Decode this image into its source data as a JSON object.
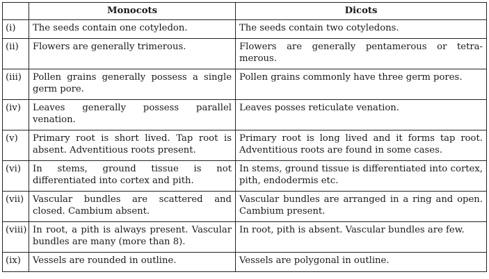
{
  "table": {
    "headers": [
      "",
      "Monocots",
      "Dicots"
    ],
    "rows": [
      {
        "num": "(i)",
        "monocots": "The seeds contain one cotyledon.",
        "dicots": "The seeds contain two cotyledons."
      },
      {
        "num": "(ii)",
        "monocots": "Flowers are generally trimerous.",
        "dicots": "Flowers are generally pentamerous or tetra-merous."
      },
      {
        "num": "(iii)",
        "monocots": "Pollen grains generally possess a single germ pore.",
        "dicots": "Pollen grains commonly have three germ pores."
      },
      {
        "num": "(iv)",
        "monocots": "Leaves generally possess parallel venation.",
        "dicots": "Leaves posses reticulate venation."
      },
      {
        "num": "(v)",
        "monocots": "Primary root is short lived. Tap root is absent. Adventitious roots present.",
        "dicots": "Primary root is long lived and it forms tap root. Adventitious roots are found in some cases."
      },
      {
        "num": "(vi)",
        "monocots": "In stems, ground tissue is not differentiated into cortex and pith.",
        "dicots": "In stems, ground tissue is differentiated into cortex, pith, endodermis etc."
      },
      {
        "num": "(vii)",
        "monocots": "Vascular bundles are scattered and closed. Cambium absent.",
        "dicots": "Vascular bundles are arranged in a ring and open. Cambium present."
      },
      {
        "num": "(viii)",
        "monocots": "In root, a pith is always present. Vascular bundles are many (more than 8).",
        "dicots": "In root, pith is absent. Vascular bundles are few."
      },
      {
        "num": "(ix)",
        "monocots": "Vessels are rounded in outline.",
        "dicots": "Vessels are polygonal in outline."
      }
    ]
  }
}
